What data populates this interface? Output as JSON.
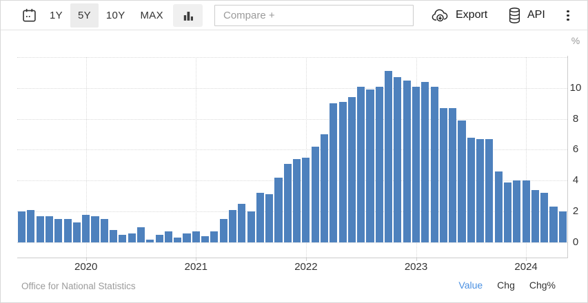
{
  "toolbar": {
    "calendar_icon": "calendar-icon",
    "range_buttons": [
      {
        "label": "1Y",
        "active": false
      },
      {
        "label": "5Y",
        "active": true
      },
      {
        "label": "10Y",
        "active": false
      },
      {
        "label": "MAX",
        "active": false
      }
    ],
    "chart_type_icon": "bar-chart-icon",
    "compare_placeholder": "Compare +",
    "export_label": "Export",
    "export_icon": "cloud-download-icon",
    "api_label": "API",
    "api_icon": "database-icon",
    "more_menu_icon": "kebab-menu-icon"
  },
  "chart_data": {
    "type": "bar",
    "title": "",
    "unit": "%",
    "bar_color": "#4e81bd",
    "grid": "dotted",
    "legend_position": "none",
    "ylim": [
      -1,
      12
    ],
    "yticks": [
      0,
      2,
      4,
      6,
      8,
      10
    ],
    "xticks": [
      "2020",
      "2021",
      "2022",
      "2023",
      "2024"
    ],
    "x": [
      "Jun 2019",
      "Jul 2019",
      "Aug 2019",
      "Sep 2019",
      "Oct 2019",
      "Nov 2019",
      "Dec 2019",
      "Jan 2020",
      "Feb 2020",
      "Mar 2020",
      "Apr 2020",
      "May 2020",
      "Jun 2020",
      "Jul 2020",
      "Aug 2020",
      "Sep 2020",
      "Oct 2020",
      "Nov 2020",
      "Dec 2020",
      "Jan 2021",
      "Feb 2021",
      "Mar 2021",
      "Apr 2021",
      "May 2021",
      "Jun 2021",
      "Jul 2021",
      "Aug 2021",
      "Sep 2021",
      "Oct 2021",
      "Nov 2021",
      "Dec 2021",
      "Jan 2022",
      "Feb 2022",
      "Mar 2022",
      "Apr 2022",
      "May 2022",
      "Jun 2022",
      "Jul 2022",
      "Aug 2022",
      "Sep 2022",
      "Oct 2022",
      "Nov 2022",
      "Dec 2022",
      "Jan 2023",
      "Feb 2023",
      "Mar 2023",
      "Apr 2023",
      "May 2023",
      "Jun 2023",
      "Jul 2023",
      "Aug 2023",
      "Sep 2023",
      "Oct 2023",
      "Nov 2023",
      "Dec 2023",
      "Jan 2024",
      "Feb 2024",
      "Mar 2024",
      "Apr 2024",
      "May 2024"
    ],
    "values": [
      2.0,
      2.1,
      1.7,
      1.7,
      1.5,
      1.5,
      1.3,
      1.8,
      1.7,
      1.5,
      0.8,
      0.5,
      0.6,
      1.0,
      0.2,
      0.5,
      0.7,
      0.3,
      0.6,
      0.7,
      0.4,
      0.7,
      1.5,
      2.1,
      2.5,
      2.0,
      3.2,
      3.1,
      4.2,
      5.1,
      5.4,
      5.5,
      6.2,
      7.0,
      9.0,
      9.1,
      9.4,
      10.1,
      9.9,
      10.1,
      11.1,
      10.7,
      10.5,
      10.1,
      10.4,
      10.1,
      8.7,
      8.7,
      7.9,
      6.8,
      6.7,
      6.7,
      4.6,
      3.9,
      4.0,
      4.0,
      3.4,
      3.2,
      2.3,
      2.0
    ],
    "year_ticks": [
      {
        "label": "2020",
        "month_index": 7
      },
      {
        "label": "2021",
        "month_index": 19
      },
      {
        "label": "2022",
        "month_index": 31
      },
      {
        "label": "2023",
        "month_index": 43
      },
      {
        "label": "2024",
        "month_index": 55
      }
    ]
  },
  "footer": {
    "source": "Office for National Statistics",
    "tabs": [
      {
        "label": "Value",
        "active": true
      },
      {
        "label": "Chg",
        "active": false
      },
      {
        "label": "Chg%",
        "active": false
      }
    ]
  }
}
